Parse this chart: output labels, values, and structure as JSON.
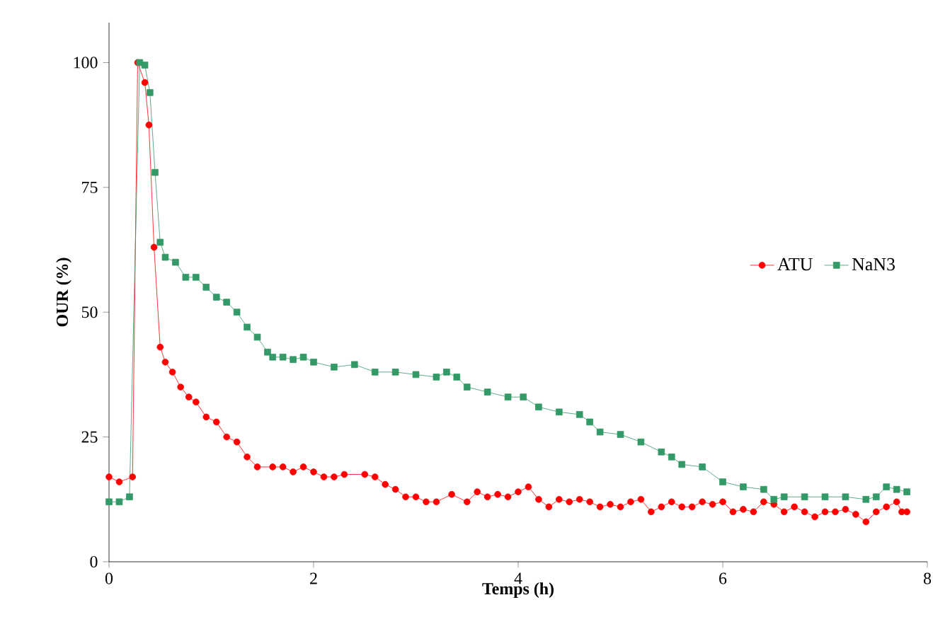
{
  "chart_data": {
    "type": "line",
    "xlabel": "Temps (h)",
    "ylabel": "OUR (%)",
    "xlim": [
      0,
      8
    ],
    "ylim": [
      0,
      108
    ],
    "xticks": [
      0,
      2,
      4,
      6,
      8
    ],
    "yticks": [
      0,
      25,
      50,
      75,
      100
    ],
    "grid": false,
    "legend": "right",
    "line_style": "solid",
    "series": [
      {
        "name": "ATU",
        "color": "#ff0000",
        "marker": "circle",
        "x": [
          0,
          0.1,
          0.23,
          0.28,
          0.35,
          0.39,
          0.44,
          0.5,
          0.55,
          0.62,
          0.7,
          0.78,
          0.85,
          0.95,
          1.05,
          1.15,
          1.25,
          1.35,
          1.45,
          1.6,
          1.7,
          1.8,
          1.9,
          2.0,
          2.1,
          2.2,
          2.3,
          2.5,
          2.6,
          2.7,
          2.8,
          2.9,
          3.0,
          3.1,
          3.2,
          3.35,
          3.5,
          3.6,
          3.7,
          3.8,
          3.9,
          4.0,
          4.1,
          4.2,
          4.3,
          4.4,
          4.5,
          4.6,
          4.7,
          4.8,
          4.9,
          5.0,
          5.1,
          5.2,
          5.3,
          5.4,
          5.5,
          5.6,
          5.7,
          5.8,
          5.9,
          6.0,
          6.1,
          6.2,
          6.3,
          6.4,
          6.5,
          6.6,
          6.7,
          6.8,
          6.9,
          7.0,
          7.1,
          7.2,
          7.3,
          7.4,
          7.5,
          7.6,
          7.7,
          7.75,
          7.8
        ],
        "values": [
          17,
          16,
          17,
          100,
          96,
          87.5,
          63,
          43,
          40,
          38,
          35,
          33,
          32,
          29,
          28,
          25,
          24,
          21,
          19,
          19,
          19,
          18,
          19,
          18,
          17,
          17,
          17.5,
          17.5,
          17,
          15.5,
          14.5,
          13,
          13,
          12,
          12,
          13.5,
          12,
          14,
          13,
          13.5,
          13,
          14,
          15,
          12.5,
          11,
          12.5,
          12,
          12.5,
          12,
          11,
          11.5,
          11,
          12,
          12.5,
          10,
          11,
          12,
          11,
          11,
          12,
          11.5,
          12,
          10,
          10.5,
          10,
          12,
          11.5,
          10,
          11,
          10,
          9,
          10,
          10,
          10.5,
          9.5,
          8,
          10,
          11,
          12,
          10,
          10
        ]
      },
      {
        "name": "NaN3",
        "color": "#339966",
        "marker": "square",
        "x": [
          0,
          0.1,
          0.2,
          0.3,
          0.35,
          0.4,
          0.45,
          0.5,
          0.55,
          0.65,
          0.75,
          0.85,
          0.95,
          1.05,
          1.15,
          1.25,
          1.35,
          1.45,
          1.55,
          1.6,
          1.7,
          1.8,
          1.9,
          2.0,
          2.2,
          2.4,
          2.6,
          2.8,
          3.0,
          3.2,
          3.3,
          3.4,
          3.5,
          3.7,
          3.9,
          4.05,
          4.2,
          4.4,
          4.6,
          4.7,
          4.8,
          5.0,
          5.2,
          5.4,
          5.5,
          5.6,
          5.8,
          6.0,
          6.2,
          6.4,
          6.5,
          6.6,
          6.8,
          7.0,
          7.2,
          7.4,
          7.5,
          7.6,
          7.7,
          7.8
        ],
        "values": [
          12,
          12,
          13,
          100,
          99.5,
          94,
          78,
          64,
          61,
          60,
          57,
          57,
          55,
          53,
          52,
          50,
          47,
          45,
          42,
          41,
          41,
          40.5,
          41,
          40,
          39,
          39.5,
          38,
          38,
          37.5,
          37,
          38,
          37,
          35,
          34,
          33,
          33,
          31,
          30,
          29.5,
          28,
          26,
          25.5,
          24,
          22,
          21,
          19.5,
          19,
          16,
          15,
          14.5,
          12.5,
          13,
          13,
          13,
          13,
          12.5,
          13,
          15,
          14.5,
          14
        ]
      }
    ]
  }
}
